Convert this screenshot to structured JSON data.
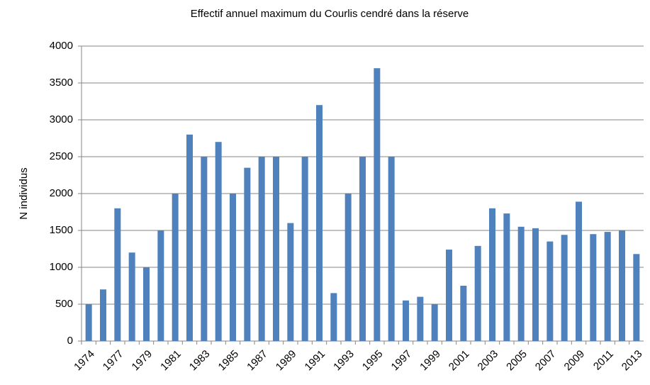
{
  "chart_data": {
    "type": "bar",
    "title": "Effectif annuel maximum du Courlis cendré dans la réserve",
    "y_label": "N individus",
    "categories": [
      "1974",
      null,
      "1977",
      null,
      "1979",
      null,
      "1981",
      null,
      "1983",
      null,
      "1985",
      null,
      "1987",
      null,
      "1989",
      null,
      "1991",
      null,
      "1993",
      null,
      "1995",
      null,
      "1997",
      null,
      "1999",
      null,
      "2001",
      null,
      "2003",
      null,
      "2005",
      null,
      "2007",
      null,
      "2009",
      null,
      "2011",
      null,
      "2013"
    ],
    "values": [
      500,
      700,
      1800,
      1200,
      1000,
      1500,
      2000,
      2800,
      2500,
      2700,
      2000,
      2350,
      2500,
      2500,
      1600,
      2500,
      3200,
      650,
      2000,
      2500,
      3700,
      2500,
      550,
      600,
      500,
      1240,
      750,
      1290,
      1800,
      1730,
      1550,
      1530,
      1350,
      1440,
      1890,
      1450,
      1480,
      1500,
      1180
    ],
    "color": "#4f81bd",
    "ylim": [
      0,
      4000
    ],
    "yticks": [
      0,
      500,
      1000,
      1500,
      2000,
      2500,
      3000,
      3500,
      4000
    ],
    "grid": true
  }
}
